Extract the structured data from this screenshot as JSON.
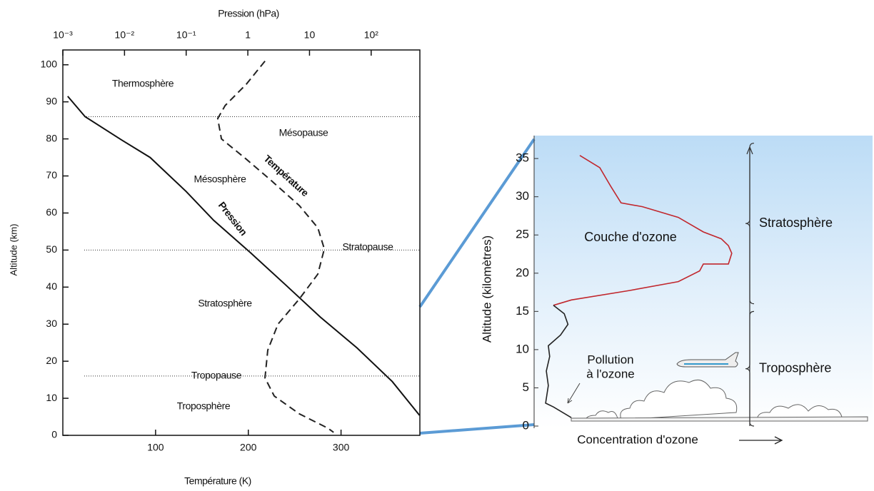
{
  "chart_data": [
    {
      "type": "line",
      "x_label": "Température (K)",
      "x2_label": "Pression (hPa)",
      "y_label": "Altitude (km)",
      "xlim": [
        0,
        385
      ],
      "xticks": [
        100,
        200,
        300
      ],
      "x2lim": [
        0.001,
        616
      ],
      "x2_scale": "log",
      "x2ticks": [
        {
          "value": 0.001,
          "label": "10⁻³"
        },
        {
          "value": 0.01,
          "label": "10⁻²"
        },
        {
          "value": 0.1,
          "label": "10⁻¹"
        },
        1,
        10,
        {
          "value": 100,
          "label": "10²"
        }
      ],
      "ylim": [
        0,
        104
      ],
      "yticks": [
        0,
        10,
        20,
        30,
        40,
        50,
        60,
        70,
        80,
        90,
        100
      ],
      "levels": [
        86,
        50,
        16
      ],
      "series": [
        {
          "name": "Température",
          "color": "#222222",
          "dash": true,
          "x": [
            218,
            198,
            175,
            167,
            171,
            198,
            225,
            255,
            275,
            282,
            275,
            255,
            232,
            221,
            218,
            228,
            255,
            286,
            292
          ],
          "values": [
            101,
            94.8,
            89,
            85.5,
            80,
            74.5,
            68.7,
            62,
            56,
            50.3,
            43.5,
            36.8,
            30,
            23,
            15.5,
            10.6,
            5.8,
            1.9,
            0.8
          ]
        },
        {
          "name": "Pression",
          "color": "#111111",
          "axis": "x2",
          "x": [
            0.0012,
            0.0023,
            0.009,
            0.026,
            0.1,
            0.28,
            1.1,
            4.1,
            15,
            59,
            220,
            610
          ],
          "values": [
            91.5,
            86,
            79.7,
            75,
            65.8,
            58,
            49.3,
            40.6,
            31.9,
            23.6,
            14.5,
            5.4
          ]
        }
      ],
      "annotations": [
        "Thermosphère",
        "Mésopause",
        "Mésosphère",
        "Stratopause",
        "Stratosphère",
        "Tropopause",
        "Troposphère"
      ]
    },
    {
      "type": "line",
      "x_label": "Concentration d'ozone",
      "y_label": "Altitude (kilomètres)",
      "xlim": [
        0,
        100
      ],
      "ylim": [
        0,
        38
      ],
      "yticks": [
        0,
        5,
        10,
        15,
        20,
        25,
        30,
        35
      ],
      "series": [
        {
          "color": "#c1272d",
          "x": [
            13.5,
            19.4,
            22.6,
            25.7,
            32,
            42.6,
            50,
            55.3,
            57.4,
            58.4,
            57.4,
            50,
            48.9,
            42.6,
            27.8,
            11,
            5.7
          ],
          "values": [
            35.4,
            33.8,
            31.4,
            29.2,
            28.7,
            27.3,
            25.4,
            24.5,
            23.6,
            22.6,
            21.2,
            21.2,
            20.3,
            18.9,
            17.7,
            16.5,
            15.8
          ]
        },
        {
          "color": "#222222",
          "x": [
            5.7,
            8.9,
            10,
            7.8,
            4.2,
            4.6,
            3.6,
            4.2,
            3.4,
            5.7,
            11
          ],
          "values": [
            15.8,
            14.7,
            13.3,
            11.9,
            10.5,
            9.1,
            7.2,
            5.3,
            3,
            2.5,
            1.1
          ]
        }
      ],
      "layers": [
        {
          "label": "Stratosphère",
          "range": [
            16,
            37
          ]
        },
        {
          "label": "Troposphère",
          "range": [
            0,
            15
          ]
        }
      ],
      "annotations": [
        "Couche d'ozone",
        "Pollution",
        "à l'ozone"
      ]
    }
  ]
}
